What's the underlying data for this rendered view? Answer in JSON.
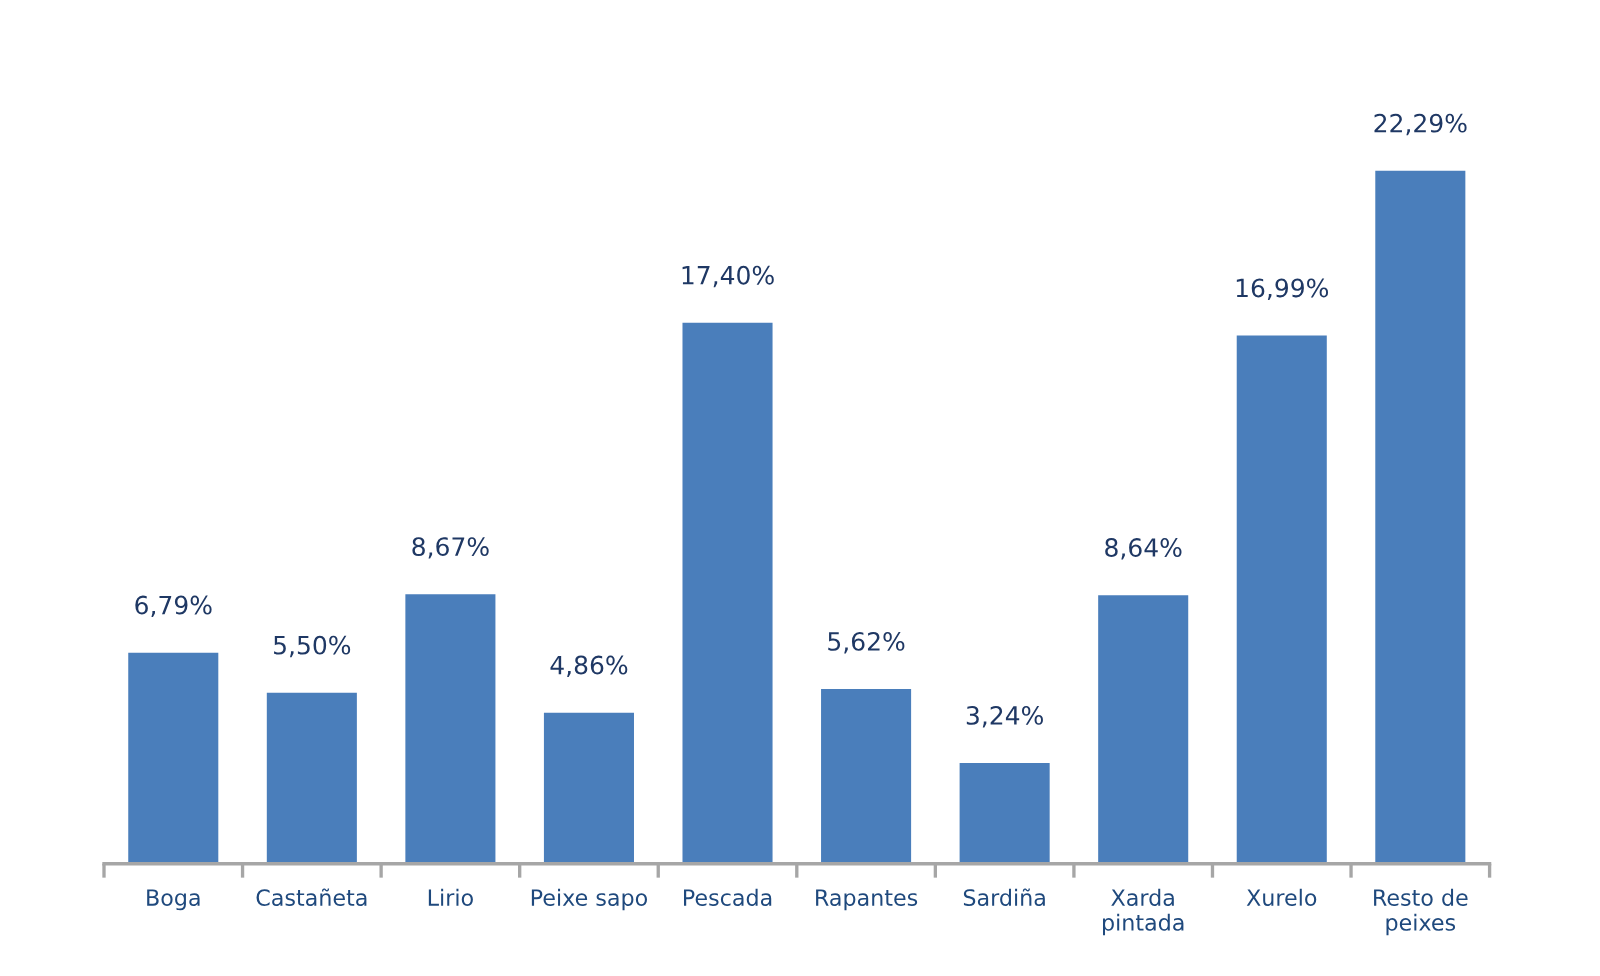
{
  "chart_data": {
    "type": "bar",
    "categories": [
      "Boga",
      "Castañeta",
      "Lirio",
      "Peixe sapo",
      "Pescada",
      "Rapantes",
      "Sardiña",
      "Xarda\npintada",
      "Xurelo",
      "Resto de\npeixes"
    ],
    "values": [
      6.79,
      5.5,
      8.67,
      4.86,
      17.4,
      5.62,
      3.24,
      8.64,
      16.99,
      22.29
    ],
    "value_labels": [
      "6,79%",
      "5,50%",
      "8,67%",
      "4,86%",
      "17,40%",
      "5,62%",
      "3,24%",
      "8,64%",
      "16,99%",
      "22,29%"
    ],
    "color": "#4a7ebb"
  }
}
